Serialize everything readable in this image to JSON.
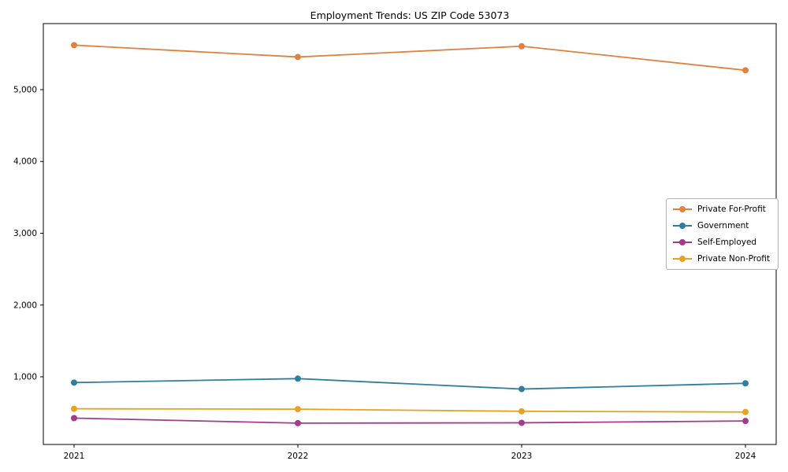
{
  "title": "Employment Trends: US ZIP Code 53073",
  "chart_data": {
    "type": "line",
    "title": "Employment Trends: US ZIP Code 53073",
    "xlabel": "",
    "ylabel": "",
    "x": [
      "2021",
      "2022",
      "2023",
      "2024"
    ],
    "series": [
      {
        "name": "Private For-Profit",
        "color": "#e0813f",
        "values": [
          5620,
          5455,
          5605,
          5270
        ]
      },
      {
        "name": "Government",
        "color": "#2e7f9d",
        "values": [
          920,
          975,
          830,
          910
        ]
      },
      {
        "name": "Self-Employed",
        "color": "#a23b8b",
        "values": [
          425,
          355,
          360,
          385
        ]
      },
      {
        "name": "Private Non-Profit",
        "color": "#e5a324",
        "values": [
          555,
          550,
          520,
          510
        ]
      }
    ],
    "yticks": [
      1000,
      2000,
      3000,
      4000,
      5000
    ],
    "ytick_labels": [
      "1,000",
      "2,000",
      "3,000",
      "4,000",
      "5,000"
    ],
    "ylim": [
      58,
      5920
    ],
    "grid": false,
    "legend_position": "center right"
  }
}
